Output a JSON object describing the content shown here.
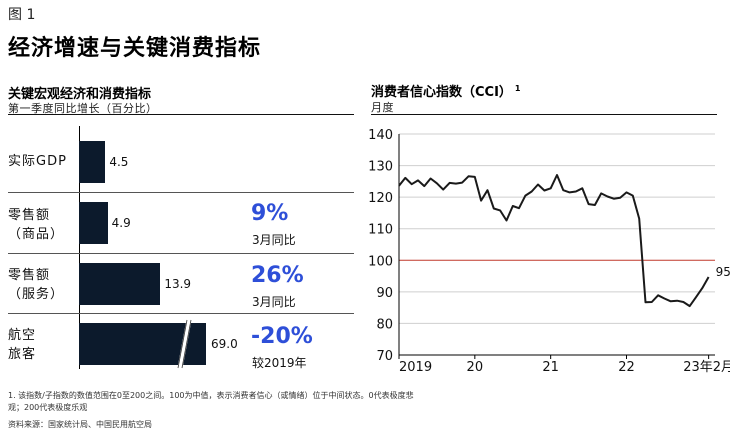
{
  "figure_label": "图 1",
  "main_title": "经济增速与关键消费指标",
  "left_panel": {
    "title": "关键宏观经济和消费指标",
    "subtitle": "第一季度同比增长（百分比）",
    "rows": [
      {
        "label_lines": [
          "实际GDP"
        ],
        "value": 4.5,
        "value_label": "4.5",
        "big": "",
        "sub": ""
      },
      {
        "label_lines": [
          "零售额",
          "（商品）"
        ],
        "value": 4.9,
        "value_label": "4.9",
        "big": "9%",
        "sub": "3月同比"
      },
      {
        "label_lines": [
          "零售额",
          "（服务）"
        ],
        "value": 13.9,
        "value_label": "13.9",
        "big": "26%",
        "sub": "3月同比"
      },
      {
        "label_lines": [
          "航空",
          "旅客"
        ],
        "value": 69.0,
        "value_label": "69.0",
        "big": "-20%",
        "sub": "较2019年",
        "truncated": true
      }
    ]
  },
  "right_panel": {
    "title": "消费者信心指数（CCI）",
    "title_sup": "1",
    "subtitle": "月度"
  },
  "chart_data": {
    "type": "line",
    "title": "消费者信心指数（CCI）",
    "ylabel": "月度",
    "ylim": [
      70,
      140
    ],
    "yticks": [
      70,
      80,
      90,
      100,
      110,
      120,
      130,
      140
    ],
    "xlim": [
      2019.0,
      2023.167
    ],
    "xtick_labels": [
      {
        "x": 2019,
        "label": "2019"
      },
      {
        "x": 2020,
        "label": "20"
      },
      {
        "x": 2021,
        "label": "21"
      },
      {
        "x": 2022,
        "label": "22"
      },
      {
        "x": 2023.083,
        "label": "23年2月"
      }
    ],
    "reference_line": {
      "y": 100,
      "color": "#c0392b"
    },
    "line_color": "#1a1a1a",
    "end_label": "95",
    "x": [
      2019.0,
      2019.083,
      2019.167,
      2019.25,
      2019.333,
      2019.417,
      2019.5,
      2019.583,
      2019.667,
      2019.75,
      2019.833,
      2019.917,
      2020.0,
      2020.083,
      2020.167,
      2020.25,
      2020.333,
      2020.417,
      2020.5,
      2020.583,
      2020.667,
      2020.75,
      2020.833,
      2020.917,
      2021.0,
      2021.083,
      2021.167,
      2021.25,
      2021.333,
      2021.417,
      2021.5,
      2021.583,
      2021.667,
      2021.75,
      2021.833,
      2021.917,
      2022.0,
      2022.083,
      2022.167,
      2022.25,
      2022.333,
      2022.417,
      2022.5,
      2022.583,
      2022.667,
      2022.75,
      2022.833,
      2022.917,
      2023.0,
      2023.083
    ],
    "y": [
      123.6,
      126.1,
      124.1,
      125.3,
      123.5,
      125.9,
      124.4,
      122.4,
      124.5,
      124.3,
      124.6,
      126.6,
      126.4,
      118.9,
      122.2,
      116.4,
      115.8,
      112.6,
      117.2,
      116.5,
      120.5,
      121.8,
      124.0,
      122.1,
      122.8,
      127.0,
      122.2,
      121.5,
      121.8,
      122.8,
      117.8,
      117.5,
      121.2,
      120.2,
      119.5,
      119.8,
      121.5,
      120.5,
      113.2,
      86.7,
      86.8,
      88.9,
      87.9,
      87.0,
      87.2,
      86.8,
      85.5,
      88.3,
      91.2,
      94.7
    ]
  },
  "footnote": "1. 该指数/子指数的数值范围在0至200之间。100为中值，表示消费者信心（或情绪）位于中间状态。0代表极度悲观；200代表极度乐观",
  "source": "资料来源：国家统计局、中国民用航空局"
}
